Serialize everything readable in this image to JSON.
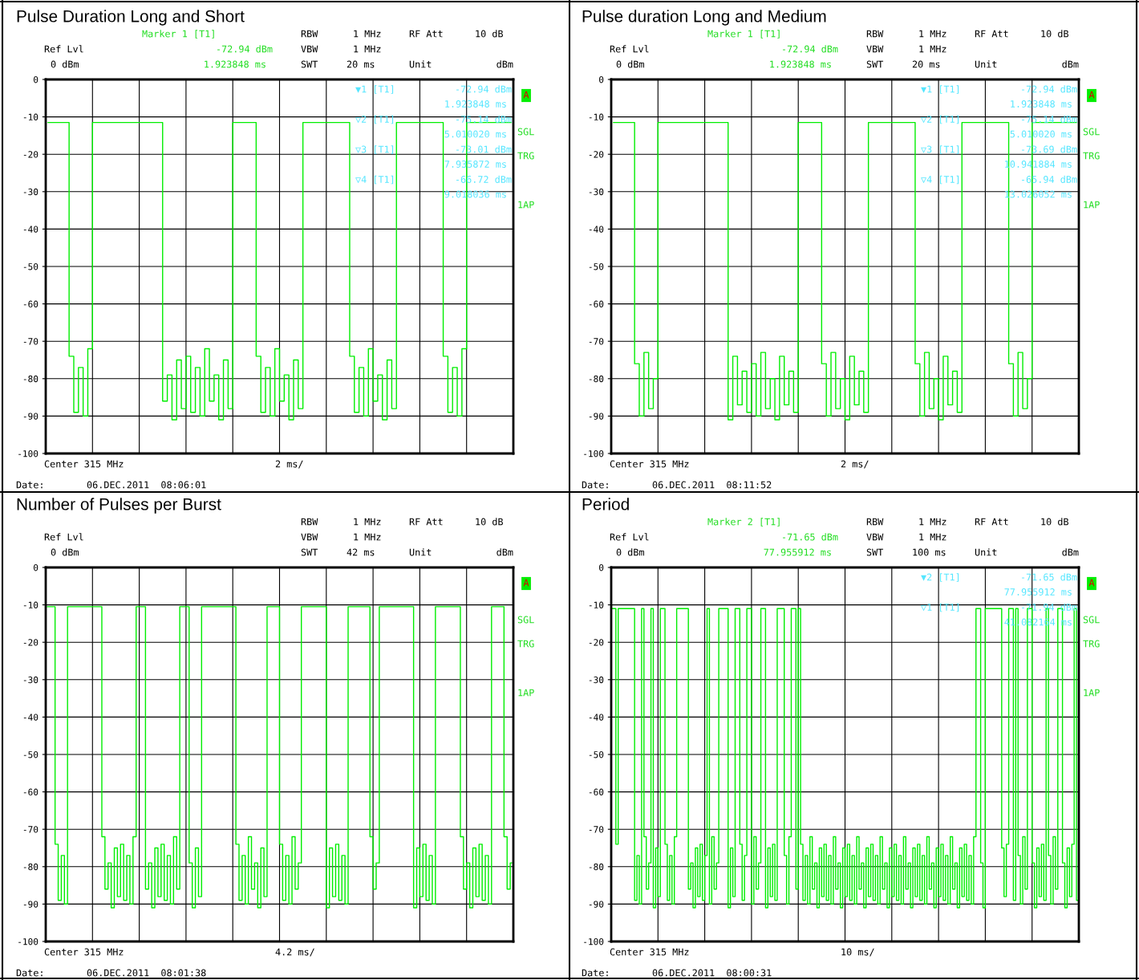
{
  "chart_data": [
    {
      "type": "step",
      "title": "Pulse Duration Long and Short",
      "categories": [
        null,
        null,
        null,
        null,
        null,
        null,
        null,
        null,
        null,
        null,
        null,
        null,
        null,
        null,
        null,
        null,
        null,
        null,
        null,
        null,
        null,
        null,
        null,
        null,
        null,
        null,
        null,
        null,
        null,
        null,
        null,
        null,
        null,
        null,
        null,
        null,
        null,
        null,
        null,
        null,
        null,
        null,
        null,
        null,
        null,
        null,
        null,
        null,
        null,
        null,
        null,
        null,
        null,
        null,
        null,
        null,
        null,
        null,
        null,
        null,
        null,
        null,
        null,
        null,
        null,
        null,
        null,
        null,
        null,
        null,
        null,
        null,
        null,
        null,
        null,
        null,
        null,
        null,
        null,
        null,
        null,
        null,
        null,
        null,
        null,
        null,
        null,
        null,
        null,
        null,
        null,
        null,
        null,
        null,
        null,
        null,
        null,
        null,
        null,
        null
      ],
      "series": [
        {
          "color": "#00ee00",
          "values": [
            -11.5,
            -11.5,
            -11.5,
            -11.5,
            -11.5,
            -74,
            -89,
            -77,
            -90,
            -72,
            -11.5,
            -11.5,
            -11.5,
            -11.5,
            -11.5,
            -11.5,
            -11.5,
            -11.5,
            -11.5,
            -11.5,
            -11.5,
            -11.5,
            -11.5,
            -11.5,
            -11.5,
            -86,
            -79,
            -91,
            -75,
            -88,
            -74,
            -89,
            -77,
            -90,
            -72,
            -86,
            -79,
            -91,
            -75,
            -88,
            -11.5,
            -11.5,
            -11.5,
            -11.5,
            -11.5,
            -74,
            -89,
            -77,
            -90,
            -72,
            -86,
            -79,
            -91,
            -75,
            -88,
            -11.5,
            -11.5,
            -11.5,
            -11.5,
            -11.5,
            -11.5,
            -11.5,
            -11.5,
            -11.5,
            -11.5,
            -74,
            -89,
            -77,
            -90,
            -72,
            -86,
            -79,
            -91,
            -75,
            -88,
            -11.5,
            -11.5,
            -11.5,
            -11.5,
            -11.5,
            -11.5,
            -11.5,
            -11.5,
            -11.5,
            -11.5,
            -74,
            -89,
            -77,
            -90,
            -72,
            -11.5,
            -11.5,
            -11.5,
            -11.5,
            -11.5,
            -11.5,
            -11.5,
            -11.5,
            -11.5,
            -11.5
          ]
        }
      ],
      "ylim": [
        -100,
        0
      ],
      "yticks": [
        0,
        -10,
        -20,
        -30,
        -40,
        -50,
        -60,
        -70,
        -80,
        -90,
        -100
      ],
      "grid": true,
      "tick_labels": "y",
      "annotations": [
        "Ref Lvl",
        "0 dBm",
        "RBW",
        "1 MHz",
        "RF Att",
        "10 dB",
        "VBW",
        "1 MHz",
        "SWT",
        "20 ms",
        "Unit",
        "dBm",
        "Center 315 MHz",
        "2 ms/",
        "Date:",
        "06.DEC.2011  08:06:01",
        "A",
        "SGL",
        "TRG",
        "1AP",
        "Marker 1 [T1]",
        "-72.94 dBm",
        "1.923848 ms",
        "▼1 [T1]",
        "-72.94 dBm",
        "1.923848 ms",
        "▽2 [T1]",
        "-75.14 dBm",
        "5.010020 ms",
        "▽3 [T1]",
        "-73.01 dBm",
        "7.935872 ms",
        "▽4 [T1]",
        "-66.72 dBm",
        "9.018036 ms"
      ]
    },
    {
      "type": "step",
      "title": "Pulse duration Long and Medium",
      "categories": [
        null,
        null,
        null,
        null,
        null,
        null,
        null,
        null,
        null,
        null,
        null,
        null,
        null,
        null,
        null,
        null,
        null,
        null,
        null,
        null,
        null,
        null,
        null,
        null,
        null,
        null,
        null,
        null,
        null,
        null,
        null,
        null,
        null,
        null,
        null,
        null,
        null,
        null,
        null,
        null,
        null,
        null,
        null,
        null,
        null,
        null,
        null,
        null,
        null,
        null,
        null,
        null,
        null,
        null,
        null,
        null,
        null,
        null,
        null,
        null,
        null,
        null,
        null,
        null,
        null,
        null,
        null,
        null,
        null,
        null,
        null,
        null,
        null,
        null,
        null,
        null,
        null,
        null,
        null,
        null,
        null,
        null,
        null,
        null,
        null,
        null,
        null,
        null,
        null,
        null,
        null,
        null,
        null,
        null,
        null,
        null,
        null,
        null,
        null,
        null
      ],
      "series": [
        {
          "color": "#00ee00",
          "values": [
            -11.5,
            -11.5,
            -11.5,
            -11.5,
            -11.5,
            -76,
            -90,
            -73,
            -88,
            -80,
            -11.5,
            -11.5,
            -11.5,
            -11.5,
            -11.5,
            -11.5,
            -11.5,
            -11.5,
            -11.5,
            -11.5,
            -11.5,
            -11.5,
            -11.5,
            -11.5,
            -11.5,
            -91,
            -74,
            -87,
            -78,
            -89,
            -76,
            -90,
            -73,
            -88,
            -80,
            -91,
            -74,
            -87,
            -78,
            -89,
            -11.5,
            -11.5,
            -11.5,
            -11.5,
            -11.5,
            -76,
            -90,
            -73,
            -88,
            -80,
            -91,
            -74,
            -87,
            -78,
            -89,
            -11.5,
            -11.5,
            -11.5,
            -11.5,
            -11.5,
            -11.5,
            -11.5,
            -11.5,
            -11.5,
            -11.5,
            -76,
            -90,
            -73,
            -88,
            -80,
            -91,
            -74,
            -87,
            -78,
            -89,
            -11.5,
            -11.5,
            -11.5,
            -11.5,
            -11.5,
            -11.5,
            -11.5,
            -11.5,
            -11.5,
            -11.5,
            -76,
            -90,
            -73,
            -88,
            -80,
            -11.5,
            -11.5,
            -11.5,
            -11.5,
            -11.5,
            -11.5,
            -11.5,
            -11.5,
            -11.5,
            -11.5
          ]
        }
      ],
      "ylim": [
        -100,
        0
      ],
      "yticks": [
        0,
        -10,
        -20,
        -30,
        -40,
        -50,
        -60,
        -70,
        -80,
        -90,
        -100
      ],
      "grid": true,
      "tick_labels": "y",
      "annotations": [
        "Ref Lvl",
        "0 dBm",
        "RBW",
        "1 MHz",
        "RF Att",
        "10 dB",
        "VBW",
        "1 MHz",
        "SWT",
        "20 ms",
        "Unit",
        "dBm",
        "Center 315 MHz",
        "2 ms/",
        "Date:",
        "06.DEC.2011  08:11:52",
        "A",
        "SGL",
        "TRG",
        "1AP",
        "Marker 1 [T1]",
        "-72.94 dBm",
        "1.923848 ms",
        "▼1 [T1]",
        "-72.94 dBm",
        "1.923848 ms",
        "▽2 [T1]",
        "-75.14 dBm",
        "5.010020 ms",
        "▽3 [T1]",
        "-73.69 dBm",
        "10.941884 ms",
        "▽4 [T1]",
        "-65.94 dBm",
        "13.026052 ms"
      ]
    },
    {
      "type": "step",
      "title": "Number of Pulses per Burst",
      "categories": [
        null,
        null,
        null,
        null,
        null,
        null,
        null,
        null,
        null,
        null,
        null,
        null,
        null,
        null,
        null,
        null,
        null,
        null,
        null,
        null,
        null,
        null,
        null,
        null,
        null,
        null,
        null,
        null,
        null,
        null,
        null,
        null,
        null,
        null,
        null,
        null,
        null,
        null,
        null,
        null,
        null,
        null,
        null,
        null,
        null,
        null,
        null,
        null,
        null,
        null,
        null,
        null,
        null,
        null,
        null,
        null,
        null,
        null,
        null,
        null,
        null,
        null,
        null,
        null,
        null,
        null,
        null,
        null,
        null,
        null,
        null,
        null,
        null,
        null,
        null,
        null,
        null,
        null,
        null,
        null,
        null,
        null,
        null,
        null,
        null,
        null,
        null,
        null,
        null,
        null,
        null,
        null,
        null,
        null,
        null,
        null,
        null,
        null,
        null,
        null,
        null,
        null,
        null,
        null,
        null,
        null,
        null,
        null,
        null,
        null,
        null,
        null,
        null,
        null,
        null,
        null,
        null,
        null,
        null,
        null,
        null,
        null,
        null,
        null,
        null,
        null,
        null,
        null,
        null,
        null,
        null,
        null,
        null,
        null,
        null,
        null,
        null,
        null,
        null,
        null,
        null,
        null,
        null,
        null,
        null,
        null,
        null,
        null,
        null,
        null
      ],
      "series": [
        {
          "color": "#00ee00",
          "values": [
            -10.5,
            -10.5,
            -10.5,
            -74,
            -89,
            -77,
            -90,
            -10.5,
            -10.5,
            -10.5,
            -10.5,
            -10.5,
            -10.5,
            -10.5,
            -10.5,
            -10.5,
            -10.5,
            -10.5,
            -72,
            -86,
            -79,
            -91,
            -75,
            -88,
            -74,
            -89,
            -77,
            -90,
            -72,
            -10.5,
            -10.5,
            -10.5,
            -86,
            -79,
            -91,
            -75,
            -88,
            -74,
            -89,
            -77,
            -90,
            -72,
            -86,
            -10.5,
            -10.5,
            -10.5,
            -79,
            -91,
            -75,
            -88,
            -10.5,
            -10.5,
            -10.5,
            -10.5,
            -10.5,
            -10.5,
            -10.5,
            -10.5,
            -10.5,
            -10.5,
            -10.5,
            -74,
            -89,
            -77,
            -90,
            -72,
            -86,
            -79,
            -91,
            -75,
            -88,
            -10.5,
            -10.5,
            -10.5,
            -10.5,
            -74,
            -89,
            -77,
            -90,
            -72,
            -86,
            -79,
            -10.5,
            -10.5,
            -10.5,
            -10.5,
            -10.5,
            -10.5,
            -10.5,
            -10.5,
            -91,
            -75,
            -88,
            -74,
            -89,
            -77,
            -90,
            -10.5,
            -10.5,
            -10.5,
            -10.5,
            -10.5,
            -10.5,
            -10.5,
            -72,
            -86,
            -79,
            -10.5,
            -10.5,
            -10.5,
            -10.5,
            -10.5,
            -10.5,
            -10.5,
            -10.5,
            -10.5,
            -10.5,
            -10.5,
            -91,
            -75,
            -88,
            -74,
            -89,
            -77,
            -90,
            -10.5,
            -10.5,
            -10.5,
            -10.5,
            -10.5,
            -10.5,
            -10.5,
            -10.5,
            -72,
            -86,
            -79,
            -91,
            -75,
            -88,
            -74,
            -89,
            -77,
            -90,
            -10.5,
            -10.5,
            -10.5,
            -10.5,
            -72,
            -86,
            -79
          ]
        }
      ],
      "ylim": [
        -100,
        0
      ],
      "yticks": [
        0,
        -10,
        -20,
        -30,
        -40,
        -50,
        -60,
        -70,
        -80,
        -90,
        -100
      ],
      "grid": true,
      "tick_labels": "y",
      "annotations": [
        "Ref Lvl",
        "0 dBm",
        "RBW",
        "1 MHz",
        "RF Att",
        "10 dB",
        "VBW",
        "1 MHz",
        "SWT",
        "42 ms",
        "Unit",
        "dBm",
        "Center 315 MHz",
        "4.2 ms/",
        "Date:",
        "06.DEC.2011  08:01:38",
        "A",
        "SGL",
        "TRG",
        "1AP"
      ]
    },
    {
      "type": "step",
      "title": "Period",
      "categories": [
        null,
        null,
        null,
        null,
        null,
        null,
        null,
        null,
        null,
        null,
        null,
        null,
        null,
        null,
        null,
        null,
        null,
        null,
        null,
        null,
        null,
        null,
        null,
        null,
        null,
        null,
        null,
        null,
        null,
        null,
        null,
        null,
        null,
        null,
        null,
        null,
        null,
        null,
        null,
        null,
        null,
        null,
        null,
        null,
        null,
        null,
        null,
        null,
        null,
        null,
        null,
        null,
        null,
        null,
        null,
        null,
        null,
        null,
        null,
        null,
        null,
        null,
        null,
        null,
        null,
        null,
        null,
        null,
        null,
        null,
        null,
        null,
        null,
        null,
        null,
        null,
        null,
        null,
        null,
        null,
        null,
        null,
        null,
        null,
        null,
        null,
        null,
        null,
        null,
        null,
        null,
        null,
        null,
        null,
        null,
        null,
        null,
        null,
        null,
        null,
        null,
        null,
        null,
        null,
        null,
        null,
        null,
        null,
        null,
        null,
        null,
        null,
        null,
        null,
        null,
        null,
        null,
        null,
        null,
        null,
        null,
        null,
        null,
        null,
        null,
        null,
        null,
        null,
        null,
        null,
        null,
        null,
        null,
        null,
        null,
        null,
        null,
        null,
        null,
        null,
        null,
        null,
        null,
        null,
        null,
        null,
        null,
        null,
        null,
        null,
        null,
        null,
        null,
        null,
        null,
        null,
        null,
        null,
        null,
        null,
        null,
        null,
        null,
        null,
        null,
        null,
        null,
        null,
        null,
        null,
        null,
        null,
        null,
        null,
        null,
        null,
        null,
        null,
        null,
        null,
        null,
        null,
        null,
        null,
        null,
        null,
        null,
        null,
        null,
        null,
        null,
        null,
        null,
        null,
        null,
        null,
        null,
        null,
        null,
        null
      ],
      "series": [
        {
          "color": "#00ee00",
          "values": [
            -11,
            -11,
            -74,
            -11,
            -11,
            -11,
            -11,
            -11,
            -11,
            -11,
            -89,
            -77,
            -90,
            -11,
            -72,
            -86,
            -79,
            -11,
            -91,
            -75,
            -88,
            -11,
            -11,
            -74,
            -89,
            -77,
            -90,
            -72,
            -11,
            -11,
            -11,
            -11,
            -11,
            -86,
            -79,
            -91,
            -75,
            -88,
            -74,
            -89,
            -77,
            -11,
            -90,
            -72,
            -86,
            -79,
            -11,
            -11,
            -11,
            -11,
            -91,
            -75,
            -88,
            -11,
            -11,
            -74,
            -89,
            -77,
            -11,
            -11,
            -90,
            -72,
            -86,
            -79,
            -11,
            -11,
            -91,
            -75,
            -88,
            -74,
            -89,
            -11,
            -11,
            -11,
            -77,
            -90,
            -72,
            -11,
            -11,
            -86,
            -11,
            -74,
            -89,
            -77,
            -90,
            -72,
            -86,
            -79,
            -91,
            -75,
            -88,
            -74,
            -89,
            -77,
            -90,
            -72,
            -86,
            -79,
            -91,
            -75,
            -88,
            -74,
            -89,
            -77,
            -90,
            -72,
            -86,
            -79,
            -91,
            -75,
            -88,
            -74,
            -89,
            -77,
            -90,
            -72,
            -86,
            -79,
            -91,
            -75,
            -88,
            -74,
            -89,
            -77,
            -90,
            -72,
            -86,
            -79,
            -91,
            -75,
            -88,
            -74,
            -89,
            -77,
            -90,
            -72,
            -86,
            -79,
            -91,
            -75,
            -88,
            -74,
            -89,
            -77,
            -90,
            -72,
            -86,
            -79,
            -91,
            -75,
            -88,
            -74,
            -89,
            -77,
            -90,
            -72,
            -11,
            -11,
            -79,
            -91,
            -11,
            -11,
            -11,
            -11,
            -11,
            -11,
            -11,
            -75,
            -88,
            -74,
            -11,
            -11,
            -89,
            -11,
            -77,
            -90,
            -72,
            -86,
            -11,
            -11,
            -79,
            -91,
            -75,
            -88,
            -74,
            -89,
            -11,
            -77,
            -90,
            -72,
            -86,
            -11,
            -11,
            -79,
            -91,
            -75,
            -88,
            -74,
            -11,
            -89
          ]
        }
      ],
      "ylim": [
        -100,
        0
      ],
      "yticks": [
        0,
        -10,
        -20,
        -30,
        -40,
        -50,
        -60,
        -70,
        -80,
        -90,
        -100
      ],
      "grid": true,
      "tick_labels": "y",
      "annotations": [
        "Ref Lvl",
        "0 dBm",
        "RBW",
        "1 MHz",
        "RF Att",
        "10 dB",
        "VBW",
        "1 MHz",
        "SWT",
        "100 ms",
        "Unit",
        "dBm",
        "Center 315 MHz",
        "10 ms/",
        "Date:",
        "06.DEC.2011  08:00:31",
        "A",
        "SGL",
        "TRG",
        "1AP",
        "Marker 2 [T1]",
        "-71.65 dBm",
        "77.955912 ms",
        "▼2 [T1]",
        "-71.65 dBm",
        "77.955912 ms",
        "▽1 [T1]",
        "-71.94 dBm",
        "41.082164 ms"
      ]
    }
  ]
}
